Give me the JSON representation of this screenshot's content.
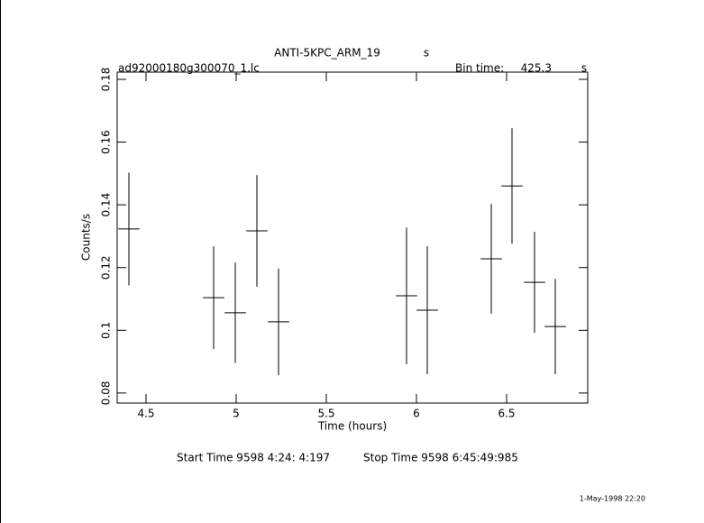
{
  "chart_data": {
    "type": "errorbar",
    "title": "ANTI-5KPC_ARM_19",
    "title_unit": "s",
    "filename": "ad92000180g300070_1.lc",
    "bin_time_label": "Bin time:",
    "bin_time": "425.3",
    "bin_time_unit": "s",
    "x_label": "Time (hours)",
    "y_label": "Counts/s",
    "start_label": "Start Time  9598  4:24: 4:197",
    "stop_label": "Stop Time  9598  6:45:49:985",
    "date_stamp": "1-May-1998 22:20",
    "x": [
      4.405,
      4.875,
      4.995,
      5.115,
      5.235,
      5.945,
      6.06,
      6.415,
      6.53,
      6.655,
      6.77
    ],
    "values": [
      0.1323,
      0.1104,
      0.1056,
      0.1317,
      0.1027,
      0.111,
      0.1064,
      0.1228,
      0.146,
      0.1153,
      0.1012
    ],
    "errors": [
      0.018,
      0.0164,
      0.016,
      0.0178,
      0.017,
      0.0218,
      0.0204,
      0.0175,
      0.0184,
      0.0161,
      0.0152
    ],
    "xerr": 0.059,
    "color": "#000000",
    "xlim": [
      4.34,
      6.95
    ],
    "ylim": [
      0.0768,
      0.1823
    ],
    "xticks": [
      4.5,
      5,
      5.5,
      6,
      6.5
    ],
    "yticks": [
      0.08,
      0.1,
      0.12,
      0.14,
      0.16,
      0.18
    ]
  }
}
